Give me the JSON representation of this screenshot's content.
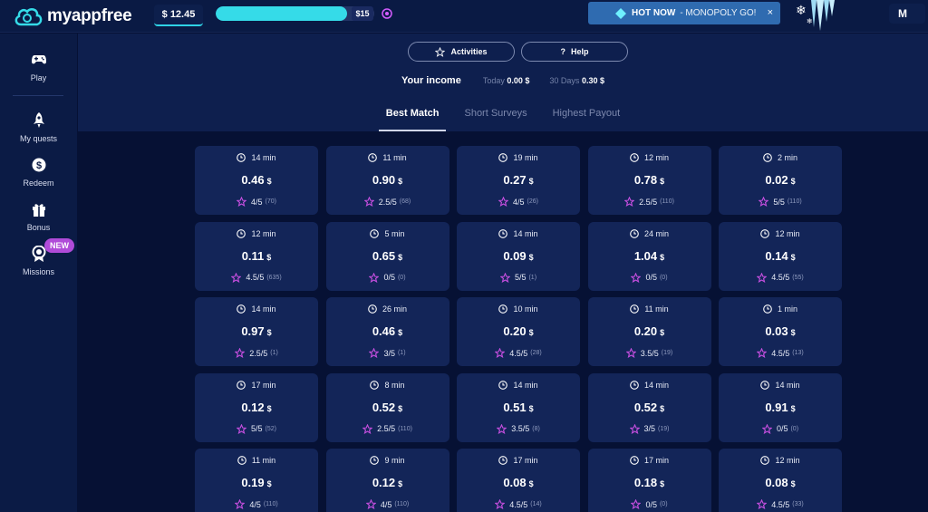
{
  "brand": {
    "name": "myappfree"
  },
  "topbar": {
    "balance": "$ 12.45",
    "goal_label": "$15",
    "goal_progress": 0.83,
    "hot": {
      "label": "HOT NOW",
      "game": "- MONOPOLY GO!",
      "close": "×"
    },
    "user_initial": "M"
  },
  "sidebar": {
    "items": [
      {
        "label": "Play",
        "icon": "gamepad-icon"
      },
      {
        "label": "My quests",
        "icon": "rocket-icon"
      },
      {
        "label": "Redeem",
        "icon": "dollar-icon"
      },
      {
        "label": "Bonus",
        "icon": "gift-icon"
      },
      {
        "label": "Missions",
        "icon": "medal-icon"
      }
    ],
    "new_badge": "NEW"
  },
  "header": {
    "activities": "Activities",
    "help": "Help",
    "help_icon": "?",
    "income_label": "Your income",
    "today_label": "Today",
    "today_value": "0.00 $",
    "days_label": "30 Days",
    "days_value": "0.30 $"
  },
  "tabs": [
    {
      "label": "Best Match",
      "active": true
    },
    {
      "label": "Short Surveys",
      "active": false
    },
    {
      "label": "Highest Payout",
      "active": false
    }
  ],
  "currency": "$",
  "offers": [
    {
      "time": "14 min",
      "pay": "0.46",
      "rating": "4/5",
      "count": "(70)"
    },
    {
      "time": "11 min",
      "pay": "0.90",
      "rating": "2.5/5",
      "count": "(68)"
    },
    {
      "time": "19 min",
      "pay": "0.27",
      "rating": "4/5",
      "count": "(26)"
    },
    {
      "time": "12 min",
      "pay": "0.78",
      "rating": "2.5/5",
      "count": "(110)"
    },
    {
      "time": "2 min",
      "pay": "0.02",
      "rating": "5/5",
      "count": "(110)"
    },
    {
      "time": "12 min",
      "pay": "0.11",
      "rating": "4.5/5",
      "count": "(635)"
    },
    {
      "time": "5 min",
      "pay": "0.65",
      "rating": "0/5",
      "count": "(0)"
    },
    {
      "time": "14 min",
      "pay": "0.09",
      "rating": "5/5",
      "count": "(1)"
    },
    {
      "time": "24 min",
      "pay": "1.04",
      "rating": "0/5",
      "count": "(0)"
    },
    {
      "time": "12 min",
      "pay": "0.14",
      "rating": "4.5/5",
      "count": "(55)"
    },
    {
      "time": "14 min",
      "pay": "0.97",
      "rating": "2.5/5",
      "count": "(1)"
    },
    {
      "time": "26 min",
      "pay": "0.46",
      "rating": "3/5",
      "count": "(1)"
    },
    {
      "time": "10 min",
      "pay": "0.20",
      "rating": "4.5/5",
      "count": "(28)"
    },
    {
      "time": "11 min",
      "pay": "0.20",
      "rating": "3.5/5",
      "count": "(19)"
    },
    {
      "time": "1 min",
      "pay": "0.03",
      "rating": "4.5/5",
      "count": "(13)"
    },
    {
      "time": "17 min",
      "pay": "0.12",
      "rating": "5/5",
      "count": "(52)"
    },
    {
      "time": "8 min",
      "pay": "0.52",
      "rating": "2.5/5",
      "count": "(110)"
    },
    {
      "time": "14 min",
      "pay": "0.51",
      "rating": "3.5/5",
      "count": "(8)"
    },
    {
      "time": "14 min",
      "pay": "0.52",
      "rating": "3/5",
      "count": "(19)"
    },
    {
      "time": "14 min",
      "pay": "0.91",
      "rating": "0/5",
      "count": "(0)"
    },
    {
      "time": "11 min",
      "pay": "0.19",
      "rating": "4/5",
      "count": "(110)"
    },
    {
      "time": "9 min",
      "pay": "0.12",
      "rating": "4/5",
      "count": "(110)"
    },
    {
      "time": "17 min",
      "pay": "0.08",
      "rating": "4.5/5",
      "count": "(14)"
    },
    {
      "time": "17 min",
      "pay": "0.18",
      "rating": "0/5",
      "count": "(0)"
    },
    {
      "time": "12 min",
      "pay": "0.08",
      "rating": "4.5/5",
      "count": "(33)"
    }
  ],
  "colors": {
    "accent": "#35dbe8",
    "star": "#c64fe0",
    "card": "#132558",
    "background": "#061134"
  }
}
